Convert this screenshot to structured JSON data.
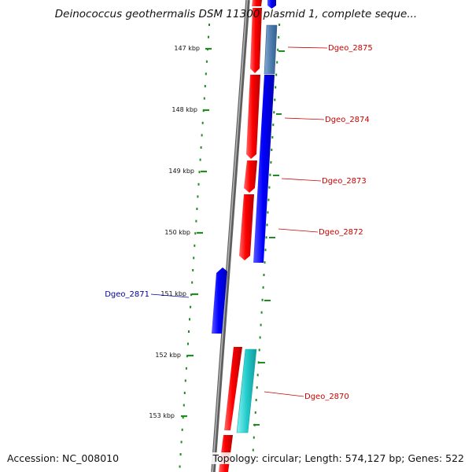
{
  "title": "Deinococcus geothermalis DSM 11300 plasmid 1, complete seque...",
  "footer": {
    "accession": "Accession: NC_008010",
    "summary": "Topology: circular; Length: 574,127 bp; Genes: 522"
  },
  "colors": {
    "ruler_ticks": "#228b22",
    "backbone": "#8c8c8c",
    "forward_gene": "#ff0000",
    "reverse_gene": "#0000ff",
    "steelblue_gene": "#4f7eb0",
    "cyan_gene": "#22cccc",
    "label_red": "#cc0000",
    "label_blue": "#000099"
  },
  "ruler": {
    "labels": [
      "147 kbp",
      "148 kbp",
      "149 kbp",
      "150 kbp",
      "151 kbp",
      "152 kbp",
      "153 kbp"
    ]
  },
  "gene_labels": [
    {
      "name": "Dgeo_2875",
      "color": "red"
    },
    {
      "name": "Dgeo_2874",
      "color": "red"
    },
    {
      "name": "Dgeo_2873",
      "color": "red"
    },
    {
      "name": "Dgeo_2872",
      "color": "red"
    },
    {
      "name": "Dgeo_2871",
      "color": "blue"
    },
    {
      "name": "Dgeo_2870",
      "color": "red"
    }
  ]
}
